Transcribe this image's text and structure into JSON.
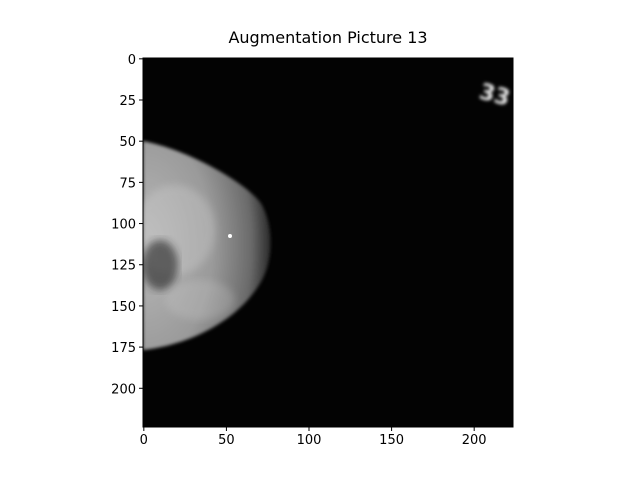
{
  "chart_data": {
    "type": "image",
    "title": "Augmentation Picture 13",
    "xlim": [
      -0.5,
      223.5
    ],
    "ylim": [
      223.5,
      -0.5
    ],
    "xticks": [
      0,
      50,
      100,
      150,
      200
    ],
    "yticks": [
      0,
      25,
      50,
      75,
      100,
      125,
      150,
      175,
      200
    ]
  }
}
